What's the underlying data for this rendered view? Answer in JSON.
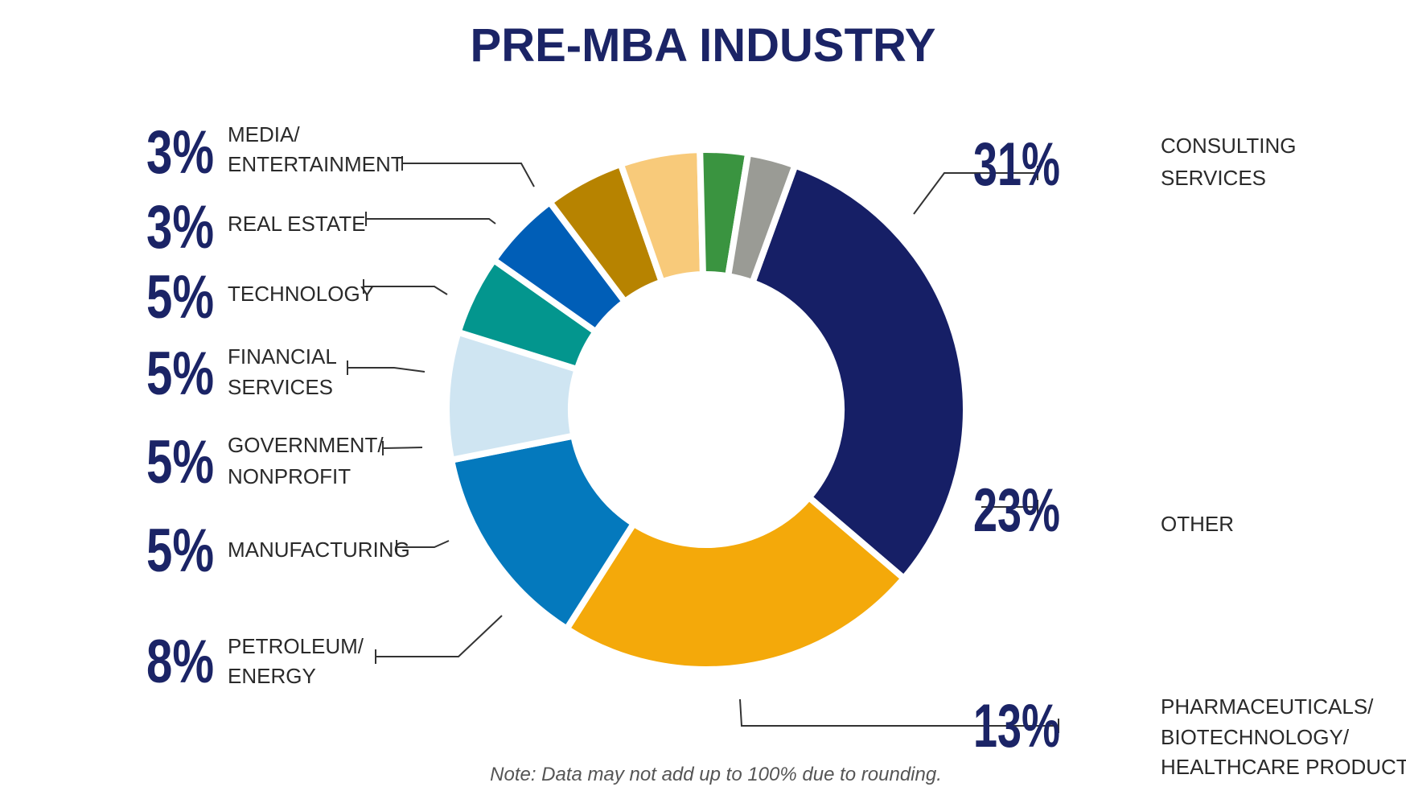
{
  "chart_data": {
    "type": "pie",
    "title": "PRE-MBA INDUSTRY",
    "note": "Note: Data may not add up to 100% due to rounding.",
    "slices": [
      {
        "value": 31,
        "pct_label": "31%",
        "label": [
          "CONSULTING",
          "SERVICES"
        ],
        "color": "#161f66"
      },
      {
        "value": 23,
        "pct_label": "23%",
        "label": [
          "OTHER"
        ],
        "color": "#f4a90a"
      },
      {
        "value": 13,
        "pct_label": "13%",
        "label": [
          "PHARMACEUTICALS/",
          "BIOTECHNOLOGY/",
          "HEALTHCARE PRODUCTS"
        ],
        "color": "#0479bd"
      },
      {
        "value": 8,
        "pct_label": "8%",
        "label": [
          "PETROLEUM/",
          "ENERGY"
        ],
        "color": "#cfe5f2"
      },
      {
        "value": 5,
        "pct_label": "5%",
        "label": [
          "MANUFACTURING"
        ],
        "color": "#03968e"
      },
      {
        "value": 5,
        "pct_label": "5%",
        "label": [
          "GOVERNMENT/",
          "NONPROFIT"
        ],
        "color": "#005eb7"
      },
      {
        "value": 5,
        "pct_label": "5%",
        "label": [
          "FINANCIAL",
          "SERVICES"
        ],
        "color": "#b78300"
      },
      {
        "value": 5,
        "pct_label": "5%",
        "label": [
          "TECHNOLOGY"
        ],
        "color": "#f8ca7a"
      },
      {
        "value": 3,
        "pct_label": "3%",
        "label": [
          "REAL ESTATE"
        ],
        "color": "#3a9440"
      },
      {
        "value": 3,
        "pct_label": "3%",
        "label": [
          "MEDIA/",
          "ENTERTAINMENT"
        ],
        "color": "#9a9b95"
      }
    ]
  }
}
